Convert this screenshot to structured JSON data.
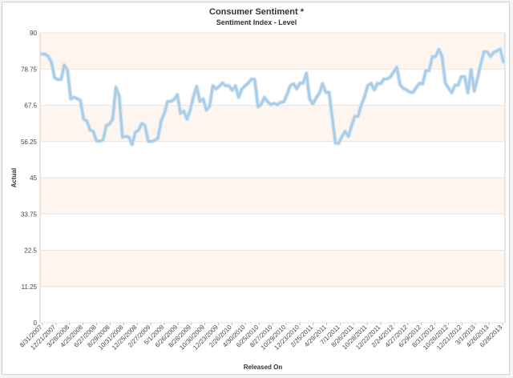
{
  "chart_data": {
    "type": "line",
    "title": "Consumer Sentiment *",
    "subtitle": "Sentiment Index - Level",
    "xlabel": "Released On",
    "ylabel": "Actual",
    "ylim": [
      0,
      90
    ],
    "yticks": [
      "0",
      "11.25",
      "22.5",
      "33.75",
      "45",
      "56.25",
      "67.5",
      "78.75",
      "90"
    ],
    "xticks": [
      "8/31/2007",
      "12/21/2007",
      "3/28/2008",
      "4/25/2008",
      "6/27/2008",
      "8/29/2008",
      "10/31/2008",
      "12/25/2008",
      "2/27/2009",
      "5/1/2009",
      "6/26/2009",
      "8/28/2009",
      "10/30/2009",
      "12/23/2009",
      "2/26/2010",
      "4/30/2010",
      "6/25/2010",
      "8/27/2010",
      "10/29/2010",
      "12/23/2010",
      "2/25/2011",
      "4/29/2011",
      "7/1/2011",
      "8/26/2011",
      "10/28/2011",
      "12/22/2011",
      "2/24/2012",
      "4/27/2012",
      "6/29/2012",
      "8/31/2012",
      "10/26/2012",
      "12/21/2012",
      "3/1/2013",
      "4/26/2013",
      "6/28/2013"
    ],
    "grid": true,
    "series": [
      {
        "color": "#a9cde6",
        "values": [
          83.4,
          83.4,
          82.7,
          80.9,
          76.1,
          75.5,
          75.5,
          80.0,
          78.4,
          69.5,
          70.0,
          69.6,
          69.0,
          63.2,
          62.6,
          59.8,
          59.4,
          56.4,
          56.4,
          56.7,
          61.2,
          61.7,
          63.2,
          73.1,
          70.3,
          57.6,
          57.9,
          57.6,
          55.3,
          59.1,
          59.8,
          61.9,
          61.2,
          56.3,
          56.3,
          56.6,
          57.3,
          62.6,
          65.1,
          68.7,
          68.7,
          69.3,
          70.8,
          65.0,
          65.7,
          63.2,
          66.0,
          70.1,
          73.4,
          68.7,
          69.5,
          66.0,
          67.2,
          73.6,
          72.6,
          73.4,
          74.4,
          73.6,
          73.6,
          72.2,
          73.6,
          70.0,
          72.5,
          73.6,
          74.4,
          75.6,
          75.5,
          67.0,
          67.8,
          69.9,
          68.6,
          67.7,
          68.1,
          67.7,
          68.4,
          68.6,
          70.9,
          73.6,
          74.2,
          72.6,
          74.4,
          74.4,
          77.5,
          69.5,
          67.9,
          69.8,
          71.2,
          74.2,
          71.5,
          71.5,
          63.7,
          55.8,
          55.7,
          57.8,
          59.4,
          57.8,
          61.2,
          64.1,
          64.1,
          67.7,
          70.1,
          73.6,
          74.3,
          72.3,
          74.3,
          74.2,
          75.7,
          75.7,
          76.3,
          77.8,
          79.3,
          73.9,
          72.8,
          72.3,
          71.6,
          71.5,
          73.0,
          74.3,
          74.2,
          78.3,
          78.3,
          82.6,
          82.6,
          84.9,
          82.7,
          74.5,
          72.9,
          71.4,
          73.8,
          73.8,
          76.4,
          76.4,
          71.4,
          78.6,
          71.9,
          76.0,
          80.3,
          84.1,
          84.1,
          82.7,
          83.9,
          84.4,
          85.0,
          81.0
        ]
      }
    ]
  }
}
